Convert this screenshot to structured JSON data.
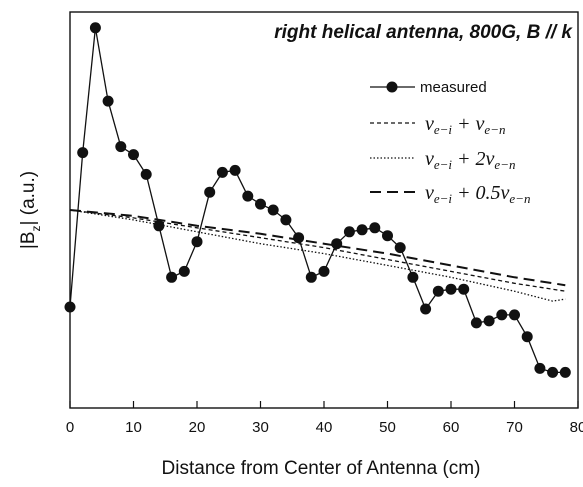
{
  "chart_data": {
    "type": "line",
    "title": "right helical antenna, 800G, B // k",
    "xlabel": "Distance from Center of Antenna (cm)",
    "ylabel": "|B_z| (a.u.)",
    "xlim": [
      0,
      80
    ],
    "ylim": [
      0,
      1
    ],
    "x_ticks": [
      "0",
      "10",
      "20",
      "30",
      "40",
      "50",
      "60",
      "70",
      "80"
    ],
    "legend_position": "top-right",
    "grid": false,
    "series": [
      {
        "name": "measured",
        "style": "solid-line-with-filled-circles",
        "x": [
          0,
          2,
          4,
          6,
          8,
          10,
          12,
          14,
          16,
          18,
          20,
          22,
          24,
          26,
          28,
          30,
          32,
          34,
          36,
          38,
          40,
          42,
          44,
          46,
          48,
          50,
          52,
          54,
          56,
          58,
          60,
          62,
          64,
          66,
          68,
          70,
          72,
          74,
          76,
          78
        ],
        "y": [
          0.255,
          0.645,
          0.96,
          0.775,
          0.66,
          0.64,
          0.59,
          0.46,
          0.33,
          0.345,
          0.42,
          0.545,
          0.595,
          0.6,
          0.535,
          0.515,
          0.5,
          0.475,
          0.43,
          0.33,
          0.345,
          0.415,
          0.445,
          0.45,
          0.455,
          0.435,
          0.405,
          0.33,
          0.25,
          0.295,
          0.3,
          0.3,
          0.215,
          0.22,
          0.235,
          0.235,
          0.18,
          0.1,
          0.09,
          0.09
        ]
      },
      {
        "name": "ν_{e-i} + ν_{e-n}",
        "style": "short-dash",
        "x": [
          0,
          10,
          20,
          30,
          40,
          50,
          60,
          70,
          78
        ],
        "y": [
          0.5,
          0.48,
          0.455,
          0.43,
          0.405,
          0.375,
          0.345,
          0.315,
          0.295
        ]
      },
      {
        "name": "ν_{e-i} + 2ν_{e-n}",
        "style": "dotted",
        "x": [
          0,
          10,
          20,
          30,
          40,
          50,
          60,
          70,
          76,
          78
        ],
        "y": [
          0.5,
          0.475,
          0.445,
          0.415,
          0.39,
          0.36,
          0.33,
          0.295,
          0.27,
          0.275
        ]
      },
      {
        "name": "ν_{e-i} + 0.5ν_{e-n}",
        "style": "long-dash",
        "x": [
          0,
          10,
          20,
          30,
          40,
          50,
          60,
          70,
          78
        ],
        "y": [
          0.5,
          0.485,
          0.46,
          0.44,
          0.415,
          0.39,
          0.36,
          0.33,
          0.31
        ]
      }
    ]
  }
}
